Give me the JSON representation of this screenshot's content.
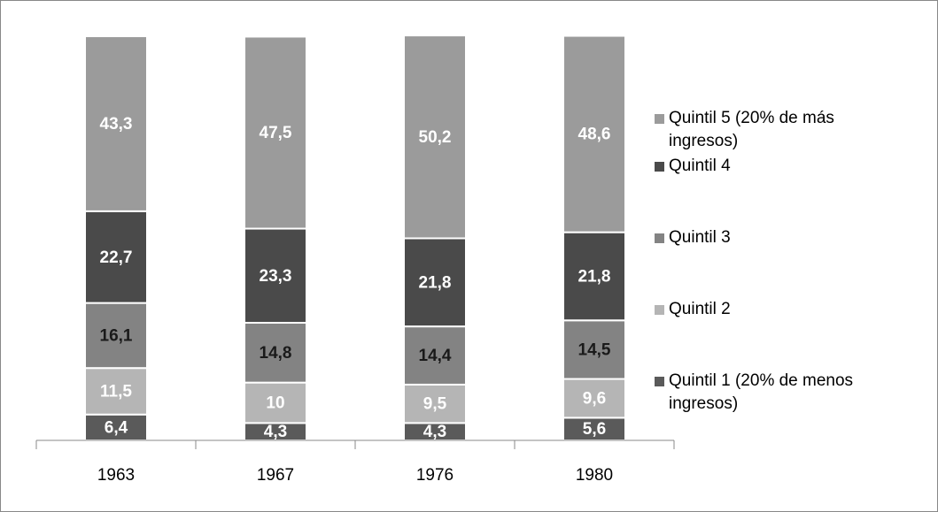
{
  "chart_data": {
    "type": "stacked_bar",
    "categories": [
      "1963",
      "1967",
      "1976",
      "1980"
    ],
    "series": [
      {
        "name": "Quintil 1 (20% de menos ingresos)",
        "color": "#5a5a5a",
        "values": [
          6.4,
          4.3,
          4.3,
          5.6
        ],
        "value_labels": [
          "6,4",
          "4,3",
          "4,3",
          "5,6"
        ]
      },
      {
        "name": "Quintil 2",
        "color": "#b5b5b5",
        "values": [
          11.5,
          10,
          9.5,
          9.6
        ],
        "value_labels": [
          "11,5",
          "10",
          "9,5",
          "9,6"
        ]
      },
      {
        "name": "Quintil 3",
        "color": "#838383",
        "values": [
          16.1,
          14.8,
          14.4,
          14.5
        ],
        "value_labels": [
          "16,1",
          "14,8",
          "14,4",
          "14,5"
        ]
      },
      {
        "name": "Quintil 4",
        "color": "#4a4a4a",
        "values": [
          22.7,
          23.3,
          21.8,
          21.8
        ],
        "value_labels": [
          "22,7",
          "23,3",
          "21,8",
          "21,8"
        ]
      },
      {
        "name": "Quintil 5 (20% de más ingresos)",
        "color": "#9b9b9b",
        "values": [
          43.3,
          47.5,
          50.2,
          48.6
        ],
        "value_labels": [
          "43,3",
          "47,5",
          "50,2",
          "48,6"
        ]
      }
    ],
    "ylim": [
      0,
      100
    ]
  }
}
